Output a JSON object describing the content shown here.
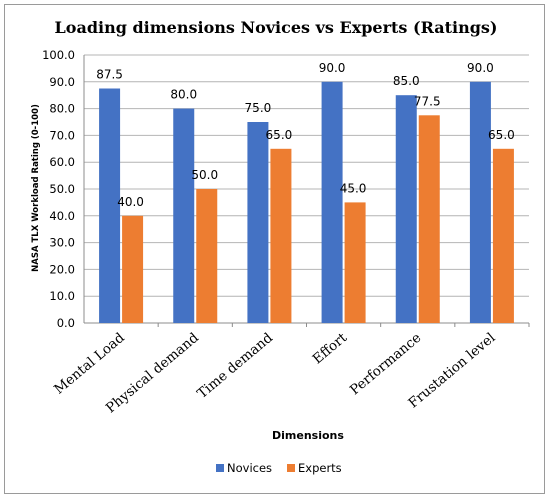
{
  "chart_data": {
    "type": "bar",
    "title": "Loading dimensions Novices vs Experts (Ratings)",
    "xlabel": "Dimensions",
    "ylabel": "NASA TLX Workload Rating (0-100)",
    "categories": [
      "Mental Load",
      "Physical demand",
      "Time demand",
      "Effort",
      "Performance",
      "Frustation level"
    ],
    "series": [
      {
        "name": "Novices",
        "values": [
          87.5,
          80.0,
          75.0,
          90.0,
          85.0,
          90.0
        ],
        "color": "#4472C4"
      },
      {
        "name": "Experts",
        "values": [
          40.0,
          50.0,
          65.0,
          45.0,
          77.5,
          65.0
        ],
        "color": "#ED7D31"
      }
    ],
    "ylim": [
      0,
      100
    ],
    "ytick_step": 10,
    "y_ticks": [
      "0.0",
      "10.0",
      "20.0",
      "30.0",
      "40.0",
      "50.0",
      "60.0",
      "70.0",
      "80.0",
      "90.0",
      "100.0"
    ],
    "data_labels": {
      "Novices": [
        "87.5",
        "80.0",
        "75.0",
        "90.0",
        "85.0",
        "90.0"
      ],
      "Experts": [
        "40.0",
        "50.0",
        "65.0",
        "45.0",
        "77.5",
        "65.0"
      ]
    },
    "grid": true,
    "legend_position": "bottom"
  }
}
